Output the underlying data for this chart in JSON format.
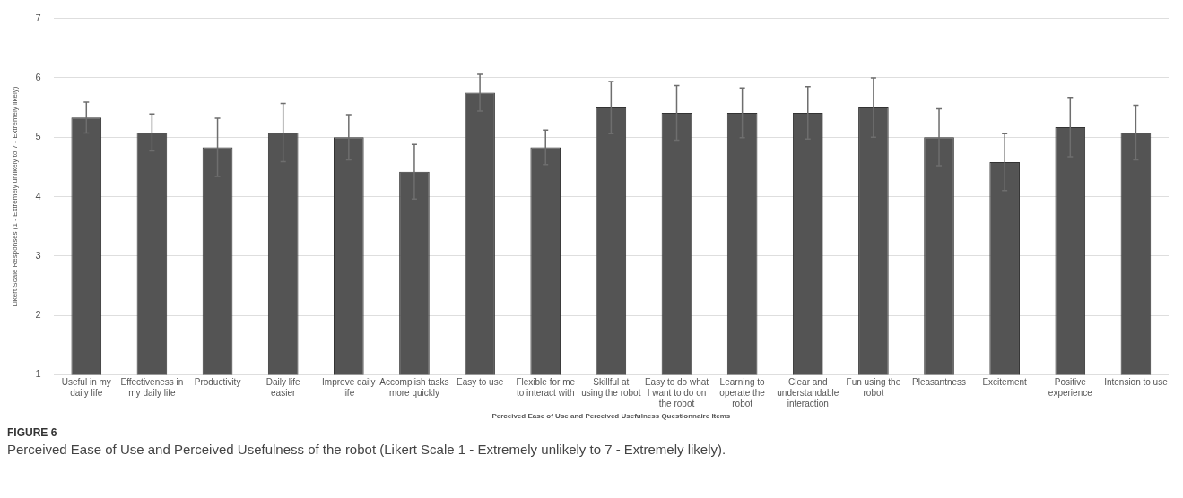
{
  "chart_data": {
    "type": "bar",
    "xlabel": "Perceived Ease of Use and Perceived Usefulness Questionnaire Items",
    "ylabel": "Likert Scale Responses (1 - Extremely unlikely to 7 - Extremely likely)",
    "categories": [
      "Useful in my daily life",
      "Effectiveness in my daily life",
      "Productivity",
      "Daily life easier",
      "Improve daily life",
      "Accomplish tasks more quickly",
      "Easy to use",
      "Flexible for me to interact with",
      "Skillful at using the robot",
      "Easy to do what I want to do on the robot",
      "Learning to operate the robot",
      "Clear and understandable interaction",
      "Fun using the robot",
      "Pleasantness",
      "Excitement",
      "Positive experience",
      "Intension to use"
    ],
    "values": [
      5.33,
      5.08,
      4.83,
      5.08,
      5.0,
      4.42,
      5.75,
      4.83,
      5.5,
      5.41,
      5.41,
      5.41,
      5.5,
      5.0,
      4.58,
      5.17,
      5.08
    ],
    "errors": [
      0.26,
      0.31,
      0.49,
      0.49,
      0.38,
      0.46,
      0.31,
      0.29,
      0.44,
      0.46,
      0.42,
      0.44,
      0.5,
      0.48,
      0.48,
      0.5,
      0.46
    ],
    "color": "#545454",
    "ylim": [
      1,
      7
    ],
    "yticks": [
      1,
      2,
      3,
      4,
      5,
      6,
      7
    ],
    "grid": "y",
    "legend": false,
    "annotations": [
      "FIGURE 6",
      "Perceived Ease of Use and Perceived Usefulness of the robot (Likert Scale 1 - Extremely unlikely to 7 - Extremely likely)."
    ]
  }
}
